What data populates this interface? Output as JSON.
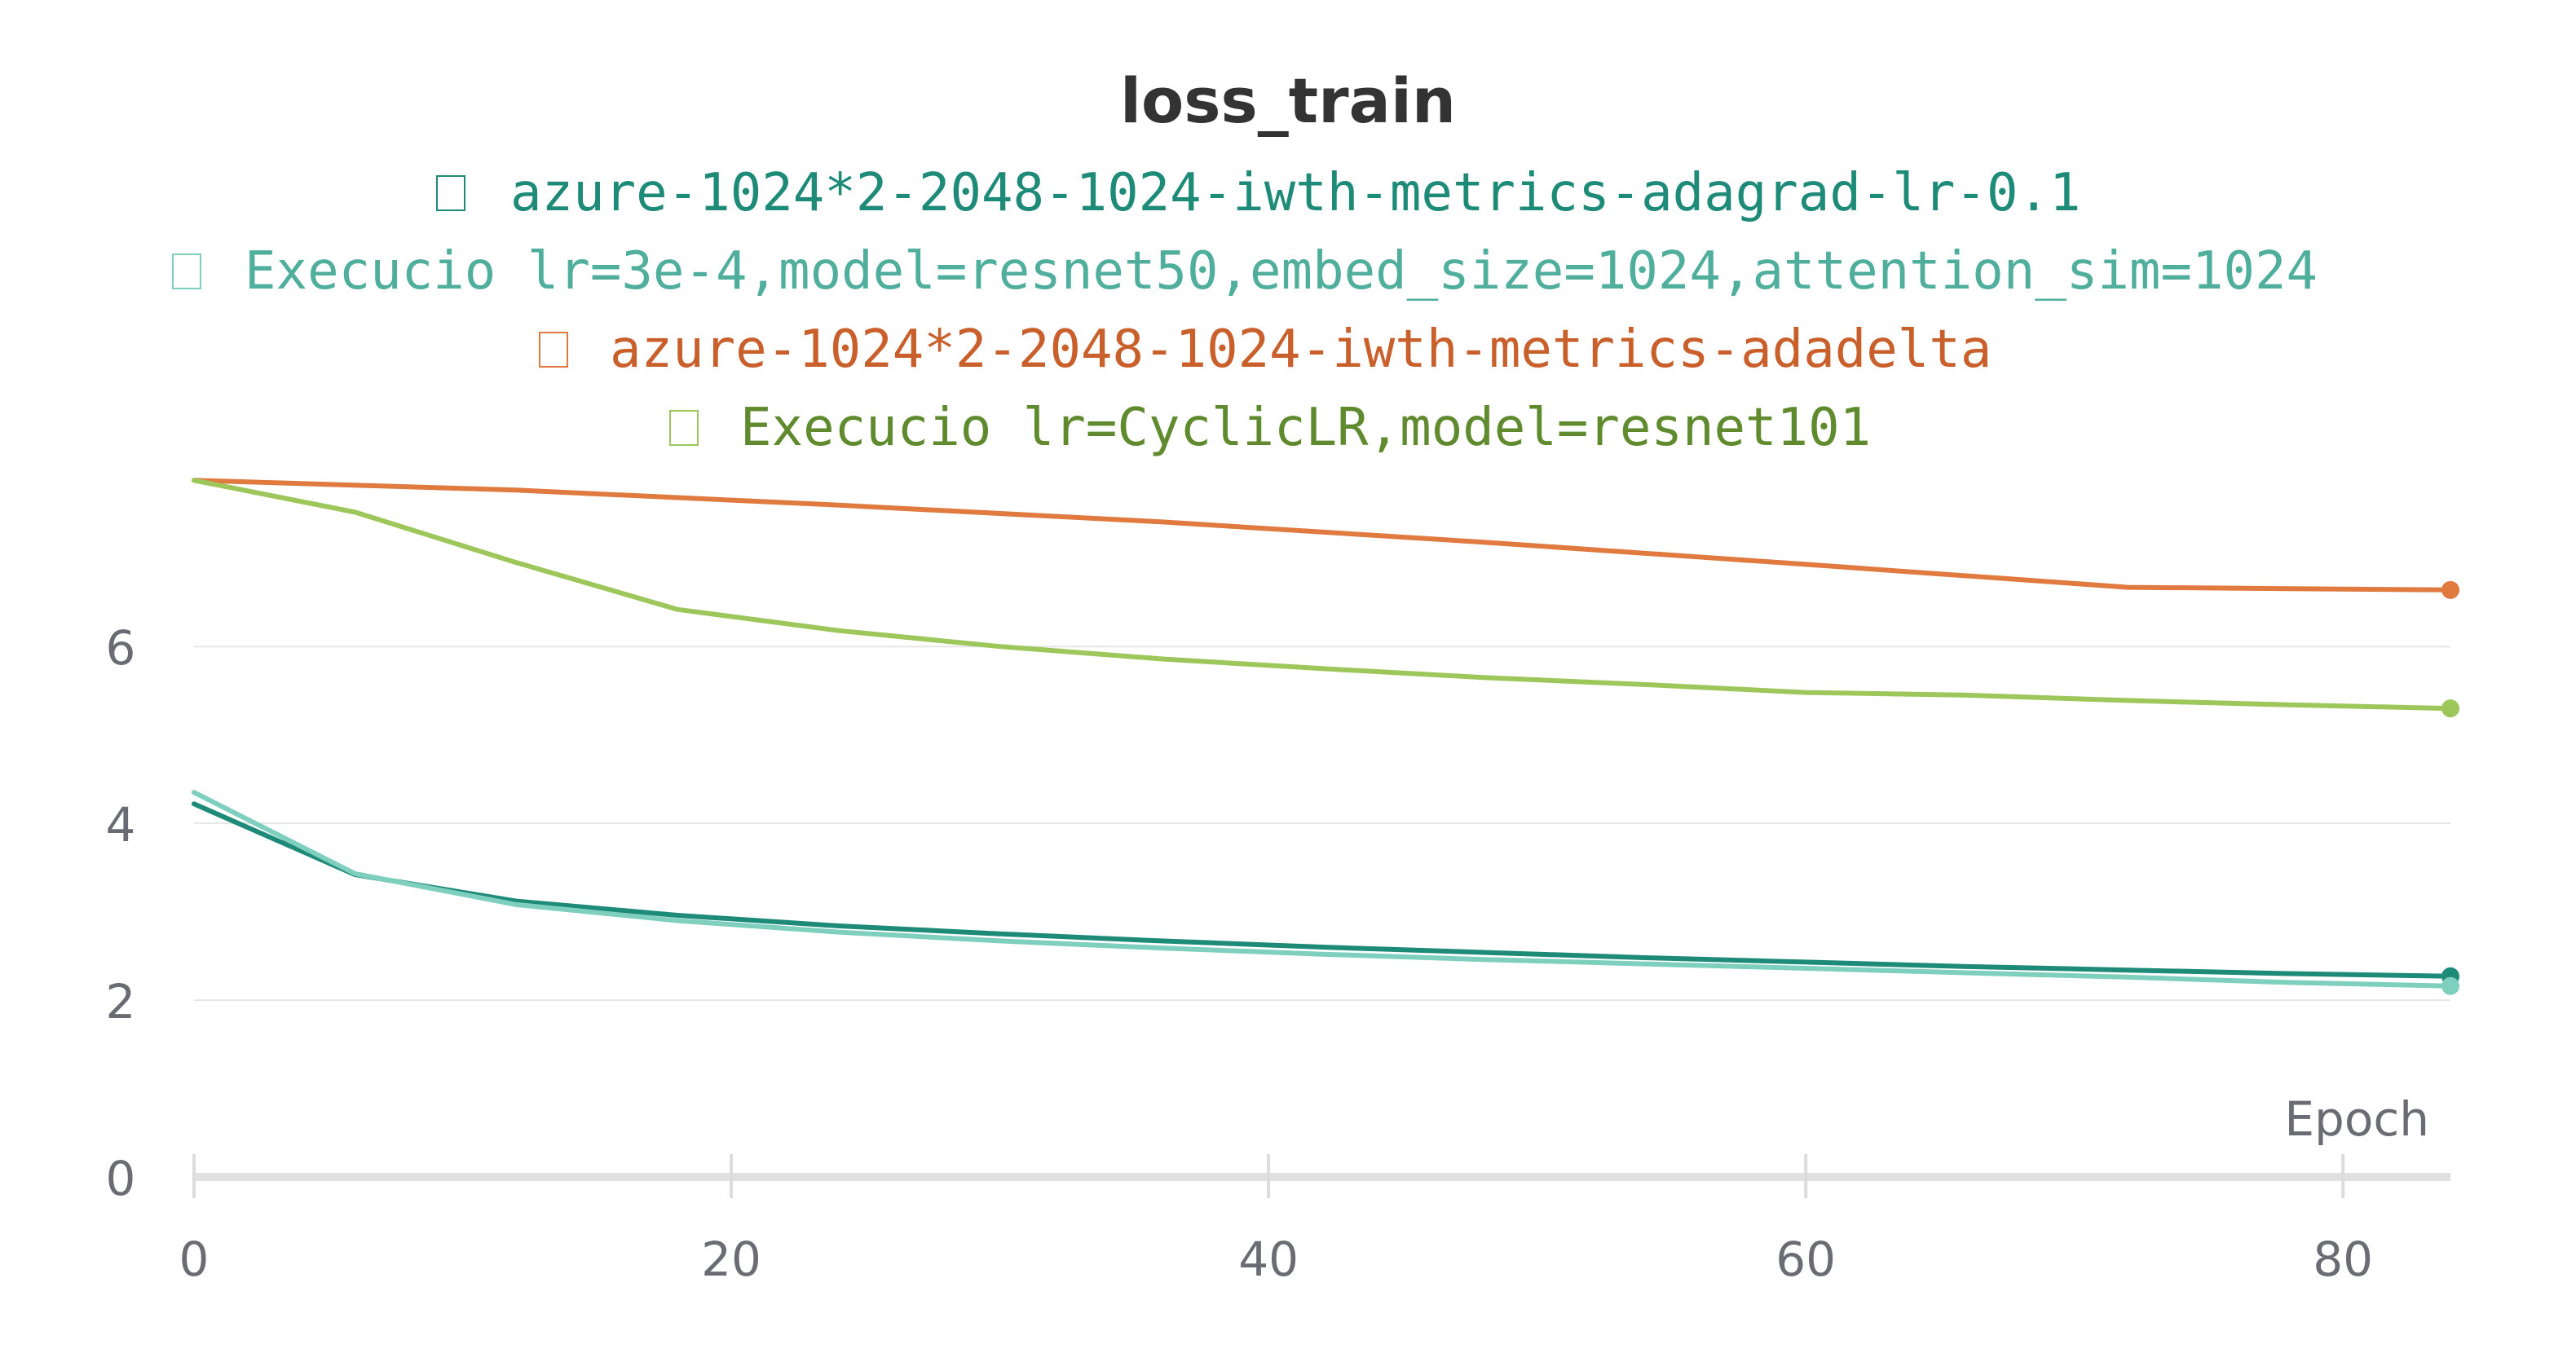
{
  "chart_data": {
    "type": "line",
    "title": "loss_train",
    "xlabel": "Epoch",
    "ylabel": "",
    "xlim": [
      0,
      84
    ],
    "ylim": [
      0,
      7.8
    ],
    "xticks": [
      0,
      20,
      40,
      60,
      80
    ],
    "yticks": [
      0,
      2,
      4,
      6
    ],
    "grid": true,
    "legend_position": "top",
    "series": [
      {
        "name": "azure-1024*2-2048-1024-iwth-metrics-adagrad-lr-0.1",
        "color": "#1e8a78",
        "text_color": "#1e8a78",
        "x": [
          0,
          6,
          12,
          18,
          24,
          30,
          36,
          42,
          48,
          54,
          60,
          66,
          72,
          78,
          84
        ],
        "y": [
          4.22,
          3.42,
          3.12,
          2.96,
          2.84,
          2.75,
          2.67,
          2.6,
          2.54,
          2.48,
          2.43,
          2.38,
          2.34,
          2.3,
          2.27
        ]
      },
      {
        "name": "Execucio lr=3e-4,model=resnet50,embed_size=1024,attention_sim=1024",
        "color": "#7fcfbf",
        "text_color": "#4fae9c",
        "x": [
          0,
          6,
          12,
          18,
          24,
          30,
          36,
          42,
          48,
          54,
          60,
          66,
          72,
          78,
          84
        ],
        "y": [
          4.35,
          3.43,
          3.08,
          2.9,
          2.77,
          2.67,
          2.59,
          2.52,
          2.46,
          2.41,
          2.36,
          2.31,
          2.26,
          2.2,
          2.16
        ]
      },
      {
        "name": "azure-1024*2-2048-1024-iwth-metrics-adadelta",
        "color": "#e07a3f",
        "text_color": "#c9602c",
        "x": [
          0,
          12,
          24,
          36,
          48,
          60,
          72,
          84
        ],
        "y": [
          7.88,
          7.77,
          7.6,
          7.41,
          7.18,
          6.93,
          6.67,
          6.64
        ]
      },
      {
        "name": "Execucio lr=CyclicLR,model=resnet101",
        "color": "#9dc75a",
        "text_color": "#5f8a2e",
        "x": [
          0,
          6,
          12,
          18,
          24,
          30,
          36,
          42,
          48,
          54,
          60,
          66,
          72,
          78,
          84
        ],
        "y": [
          7.88,
          7.52,
          6.95,
          6.42,
          6.18,
          6.0,
          5.86,
          5.75,
          5.65,
          5.57,
          5.48,
          5.45,
          5.39,
          5.34,
          5.3
        ]
      }
    ]
  }
}
